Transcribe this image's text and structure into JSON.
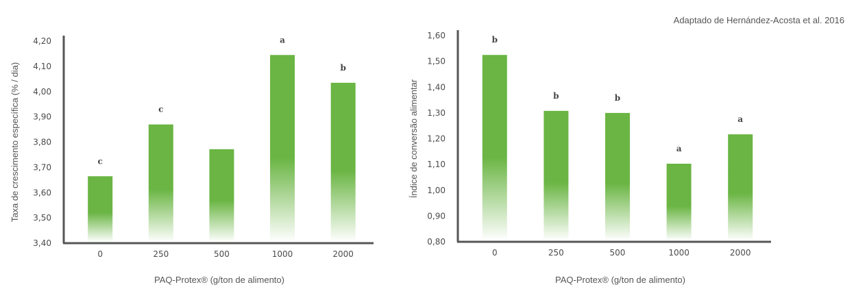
{
  "source_note": "Adaptado de Hernández-Acosta et al. 2016",
  "colors": {
    "bar": "#6ab543",
    "axis": "#555555"
  },
  "chart_data": [
    {
      "type": "bar",
      "categories": [
        "0",
        "250",
        "500",
        "1000",
        "2000"
      ],
      "values": [
        3.665,
        3.87,
        3.772,
        4.145,
        4.035
      ],
      "bar_labels": [
        "c",
        "c",
        "",
        "a",
        "b"
      ],
      "ylabel": "Taxa de crescimento específica (% / dia)",
      "xlabel": "PAQ-Protex® (g/ton de alimento)",
      "ylim": [
        3.4,
        4.2
      ],
      "yticks": [
        "3,40",
        "3,50",
        "3,60",
        "3,70",
        "3,80",
        "3,90",
        "4,00",
        "4,10",
        "4,20"
      ],
      "grid": false
    },
    {
      "type": "bar",
      "categories": [
        "0",
        "250",
        "500",
        "1000",
        "2000"
      ],
      "values": [
        1.525,
        1.308,
        1.3,
        1.103,
        1.217
      ],
      "bar_labels": [
        "b",
        "b",
        "b",
        "a",
        "a"
      ],
      "ylabel": "Índice de conversão alimentar",
      "xlabel": "PAQ-Protex® (g/ton de alimento)",
      "ylim": [
        0.8,
        1.6
      ],
      "yticks": [
        "0,80",
        "0,90",
        "1,00",
        "1,10",
        "1,20",
        "1,30",
        "1,40",
        "1,50",
        "1,60"
      ],
      "grid": false
    }
  ]
}
